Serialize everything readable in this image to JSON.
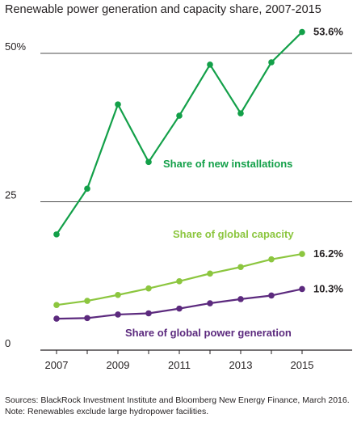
{
  "title": "Renewable power generation and capacity share, 2007-2015",
  "chart_data": {
    "type": "line",
    "title": "Renewable power generation and capacity share, 2007-2015",
    "x": [
      2007,
      2008,
      2009,
      2010,
      2011,
      2012,
      2013,
      2014,
      2015
    ],
    "x_tick_labels": [
      "2007",
      "2009",
      "2011",
      "2013",
      "2015"
    ],
    "xlim": [
      2006.75,
      2016.6
    ],
    "y_tick_labels": [
      "50%",
      "25",
      "0"
    ],
    "y_ticks": [
      50,
      25,
      0
    ],
    "ylim": [
      0,
      50
    ],
    "grid": "horizontal",
    "series": [
      {
        "name": "Share of new installations",
        "color": "#13a049",
        "values": [
          19.5,
          27.2,
          41.4,
          31.7,
          39.5,
          48.1,
          39.9,
          48.5,
          53.6
        ],
        "end_label": "53.6%"
      },
      {
        "name": "Share of global capacity",
        "color": "#8cc63f",
        "values": [
          7.6,
          8.3,
          9.3,
          10.4,
          11.6,
          12.9,
          14.0,
          15.3,
          16.2
        ],
        "end_label": "16.2%"
      },
      {
        "name": "Share of global power generation",
        "color": "#5c2a7e",
        "values": [
          5.3,
          5.4,
          6.0,
          6.2,
          7.0,
          7.9,
          8.6,
          9.2,
          10.3
        ],
        "end_label": "10.3%"
      }
    ]
  },
  "source_lines": [
    "Sources: BlackRock Investment Institute and Bloomberg New Energy Finance, March 2016.",
    "Note: Renewables exclude large hydropower facilities."
  ]
}
